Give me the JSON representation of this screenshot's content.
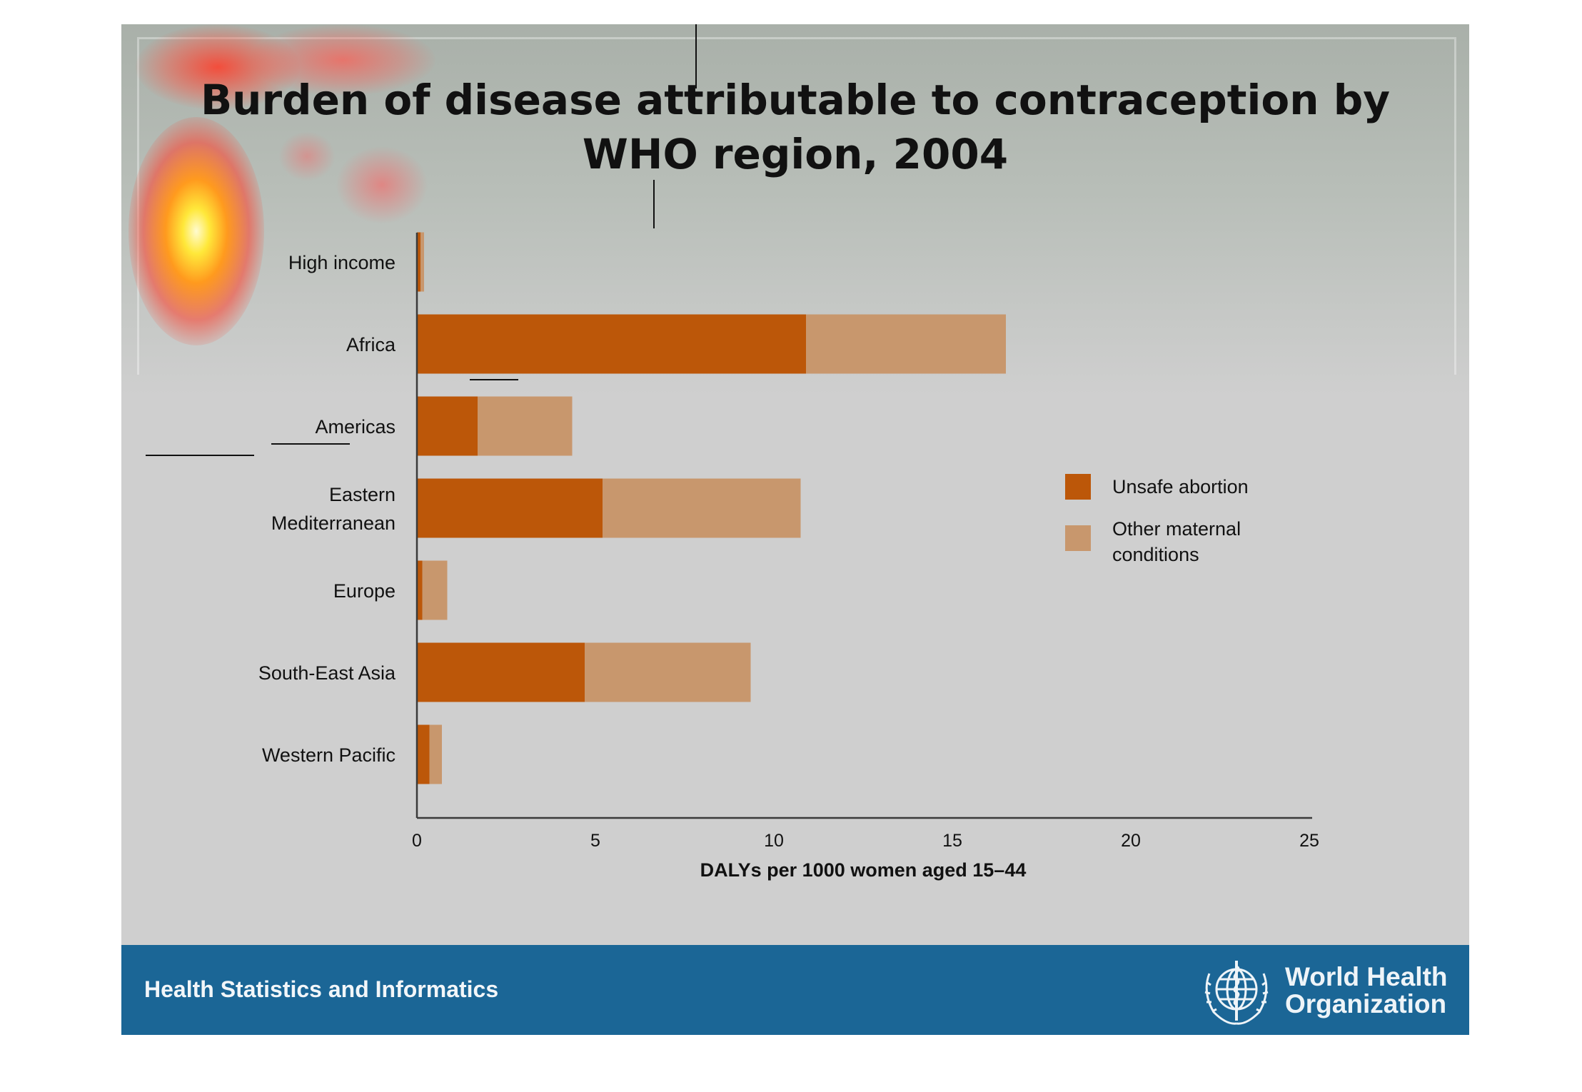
{
  "slide": {
    "title_line1": "Burden of disease attributable to contraception by",
    "title_line2": "WHO region, 2004"
  },
  "footer": {
    "text": "Health Statistics and Informatics",
    "org_line1": "World Health",
    "org_line2": "Organization",
    "logo_icon": "who-emblem-icon",
    "color": "#1b6696"
  },
  "chart_data": {
    "type": "bar",
    "orientation": "horizontal",
    "stacked": true,
    "categories": [
      "High income",
      "Africa",
      "Americas",
      "Eastern Mediterranean",
      "Europe",
      "South-East Asia",
      "Western Pacific"
    ],
    "category_label_lines": [
      [
        "High income"
      ],
      [
        "Africa"
      ],
      [
        "Americas"
      ],
      [
        "Eastern",
        "Mediterranean"
      ],
      [
        "Europe"
      ],
      [
        "South-East Asia"
      ],
      [
        "Western Pacific"
      ]
    ],
    "series": [
      {
        "name": "Unsafe abortion",
        "color": "#bc5709",
        "values": [
          0.1,
          10.9,
          1.7,
          5.2,
          0.15,
          4.7,
          0.35
        ]
      },
      {
        "name": "Other maternal conditions",
        "color": "#c8976d",
        "values": [
          0.1,
          5.6,
          2.65,
          5.55,
          0.7,
          4.65,
          0.35
        ]
      }
    ],
    "xlabel": "DALYs per 1000 women aged 15–44",
    "xlim": [
      0,
      25
    ],
    "xticks": [
      0,
      5,
      10,
      15,
      20,
      25
    ],
    "legend_position": "right",
    "grid": false
  }
}
